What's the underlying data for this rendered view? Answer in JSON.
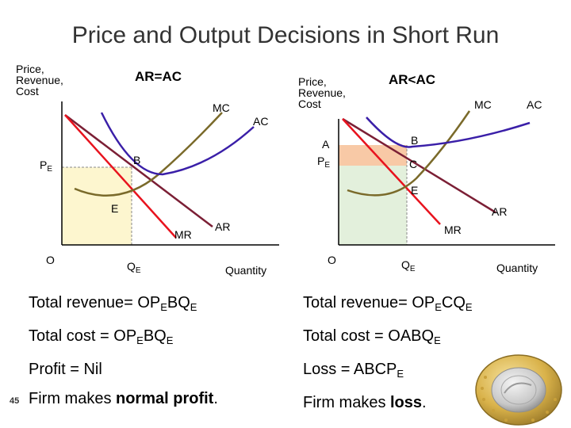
{
  "title": "Price and Output Decisions in Short Run",
  "page_number": "45",
  "left_graph": {
    "y_axis_title": [
      "Price,",
      "Revenue,",
      "Cost"
    ],
    "header": "AR=AC",
    "labels": {
      "mc": "MC",
      "ac": "AC",
      "ar": "AR",
      "mr": "MR",
      "b": "B",
      "e": "E",
      "pe": "P",
      "pe_sub": "E",
      "origin": "O",
      "qe": "Q",
      "qe_sub": "E",
      "x_axis": "Quantity"
    },
    "lines": [
      {
        "prefix": "Total revenue= OP",
        "sub1": "E",
        "mid": "BQ",
        "sub2": "E"
      },
      {
        "prefix": "Total cost = OP",
        "sub1": "E",
        "mid": "BQ",
        "sub2": "E"
      },
      {
        "text": "Profit = Nil"
      },
      {
        "prefix": "Firm makes ",
        "bold": "normal profit",
        "suffix": "."
      }
    ]
  },
  "right_graph": {
    "y_axis_title": [
      "Price,",
      "Revenue,",
      "Cost"
    ],
    "header": "AR<AC",
    "labels": {
      "mc": "MC",
      "ac": "AC",
      "ar": "AR",
      "mr": "MR",
      "a": "A",
      "b": "B",
      "c": "C",
      "e": "E",
      "pe": "P",
      "pe_sub": "E",
      "origin": "O",
      "qe": "Q",
      "qe_sub": "E",
      "x_axis": "Quantity"
    },
    "lines": [
      {
        "prefix": "Total revenue= OP",
        "sub1": "E",
        "mid": "CQ",
        "sub2": "E"
      },
      {
        "prefix": "Total cost = OABQ",
        "sub1": "E"
      },
      {
        "prefix": "Loss = ABCP",
        "sub1": "E"
      },
      {
        "prefix": "Firm makes ",
        "bold": "loss",
        "suffix": "."
      }
    ]
  },
  "colors": {
    "ar_line": "#7b1f35",
    "mr_line": "#e8131e",
    "mc_line": "#7a6a2a",
    "ac_line": "#3a1fa8",
    "shade_yellow": "#fdf6cf",
    "shade_orange": "#f8c9a6",
    "shade_green": "#e3f0dc",
    "coin_gold": "#d9b24a",
    "coin_silver": "#c8c8c8"
  }
}
